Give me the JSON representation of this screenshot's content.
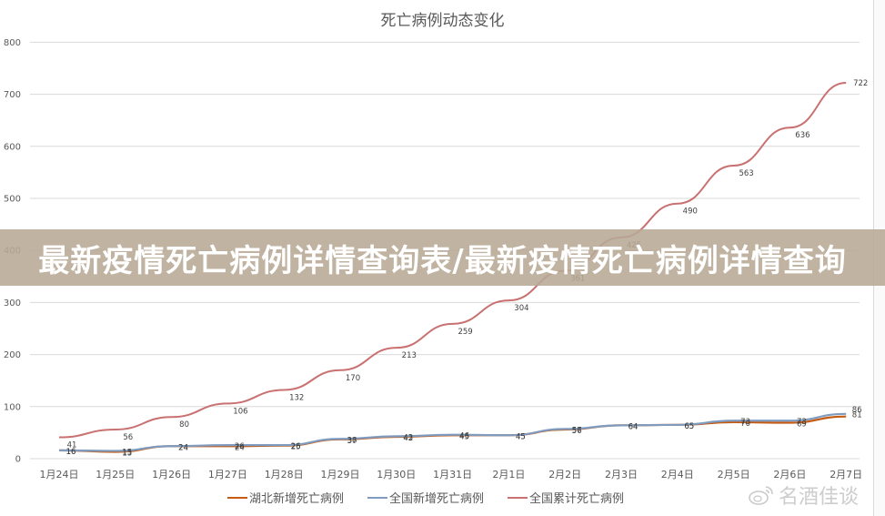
{
  "chart_title": "死亡病例动态变化",
  "banner": {
    "text": "最新疫情死亡病例详情查询表/最新疫情死亡病例详情查询"
  },
  "watermark": {
    "text": "名酒佳谈",
    "icon": "weibo-icon"
  },
  "legend": [
    {
      "label": "湖北新增死亡病例",
      "color": "#C55A11"
    },
    {
      "label": "全国新增死亡病例",
      "color": "#7F9CC0"
    },
    {
      "label": "全国累计死亡病例",
      "color": "#C97070"
    }
  ],
  "y_ticks": [
    "0",
    "100",
    "200",
    "300",
    "400",
    "500",
    "600",
    "700",
    "800"
  ],
  "chart_data": {
    "type": "line",
    "title": "死亡病例动态变化",
    "xlabel": "",
    "ylabel": "",
    "ylim": [
      0,
      800
    ],
    "grid": true,
    "legend_position": "bottom",
    "categories": [
      "1月24日",
      "1月25日",
      "1月26日",
      "1月27日",
      "1月28日",
      "1月29日",
      "1月30日",
      "1月31日",
      "2月1日",
      "2月2日",
      "2月3日",
      "2月4日",
      "2月5日",
      "2月6日",
      "2月7日"
    ],
    "series": [
      {
        "name": "湖北新增死亡病例",
        "color": "#C55A11",
        "values": [
          16,
          13,
          24,
          24,
          25,
          37,
          42,
          45,
          45,
          56,
          64,
          65,
          70,
          69,
          81
        ]
      },
      {
        "name": "全国新增死亡病例",
        "color": "#7F9CC0",
        "values": [
          16,
          15,
          24,
          26,
          26,
          38,
          43,
          46,
          45,
          57,
          64,
          65,
          73,
          73,
          86
        ]
      },
      {
        "name": "全国累计死亡病例",
        "color": "#C97070",
        "values": [
          41,
          56,
          80,
          106,
          132,
          170,
          213,
          259,
          304,
          361,
          425,
          490,
          563,
          636,
          722
        ]
      }
    ]
  }
}
